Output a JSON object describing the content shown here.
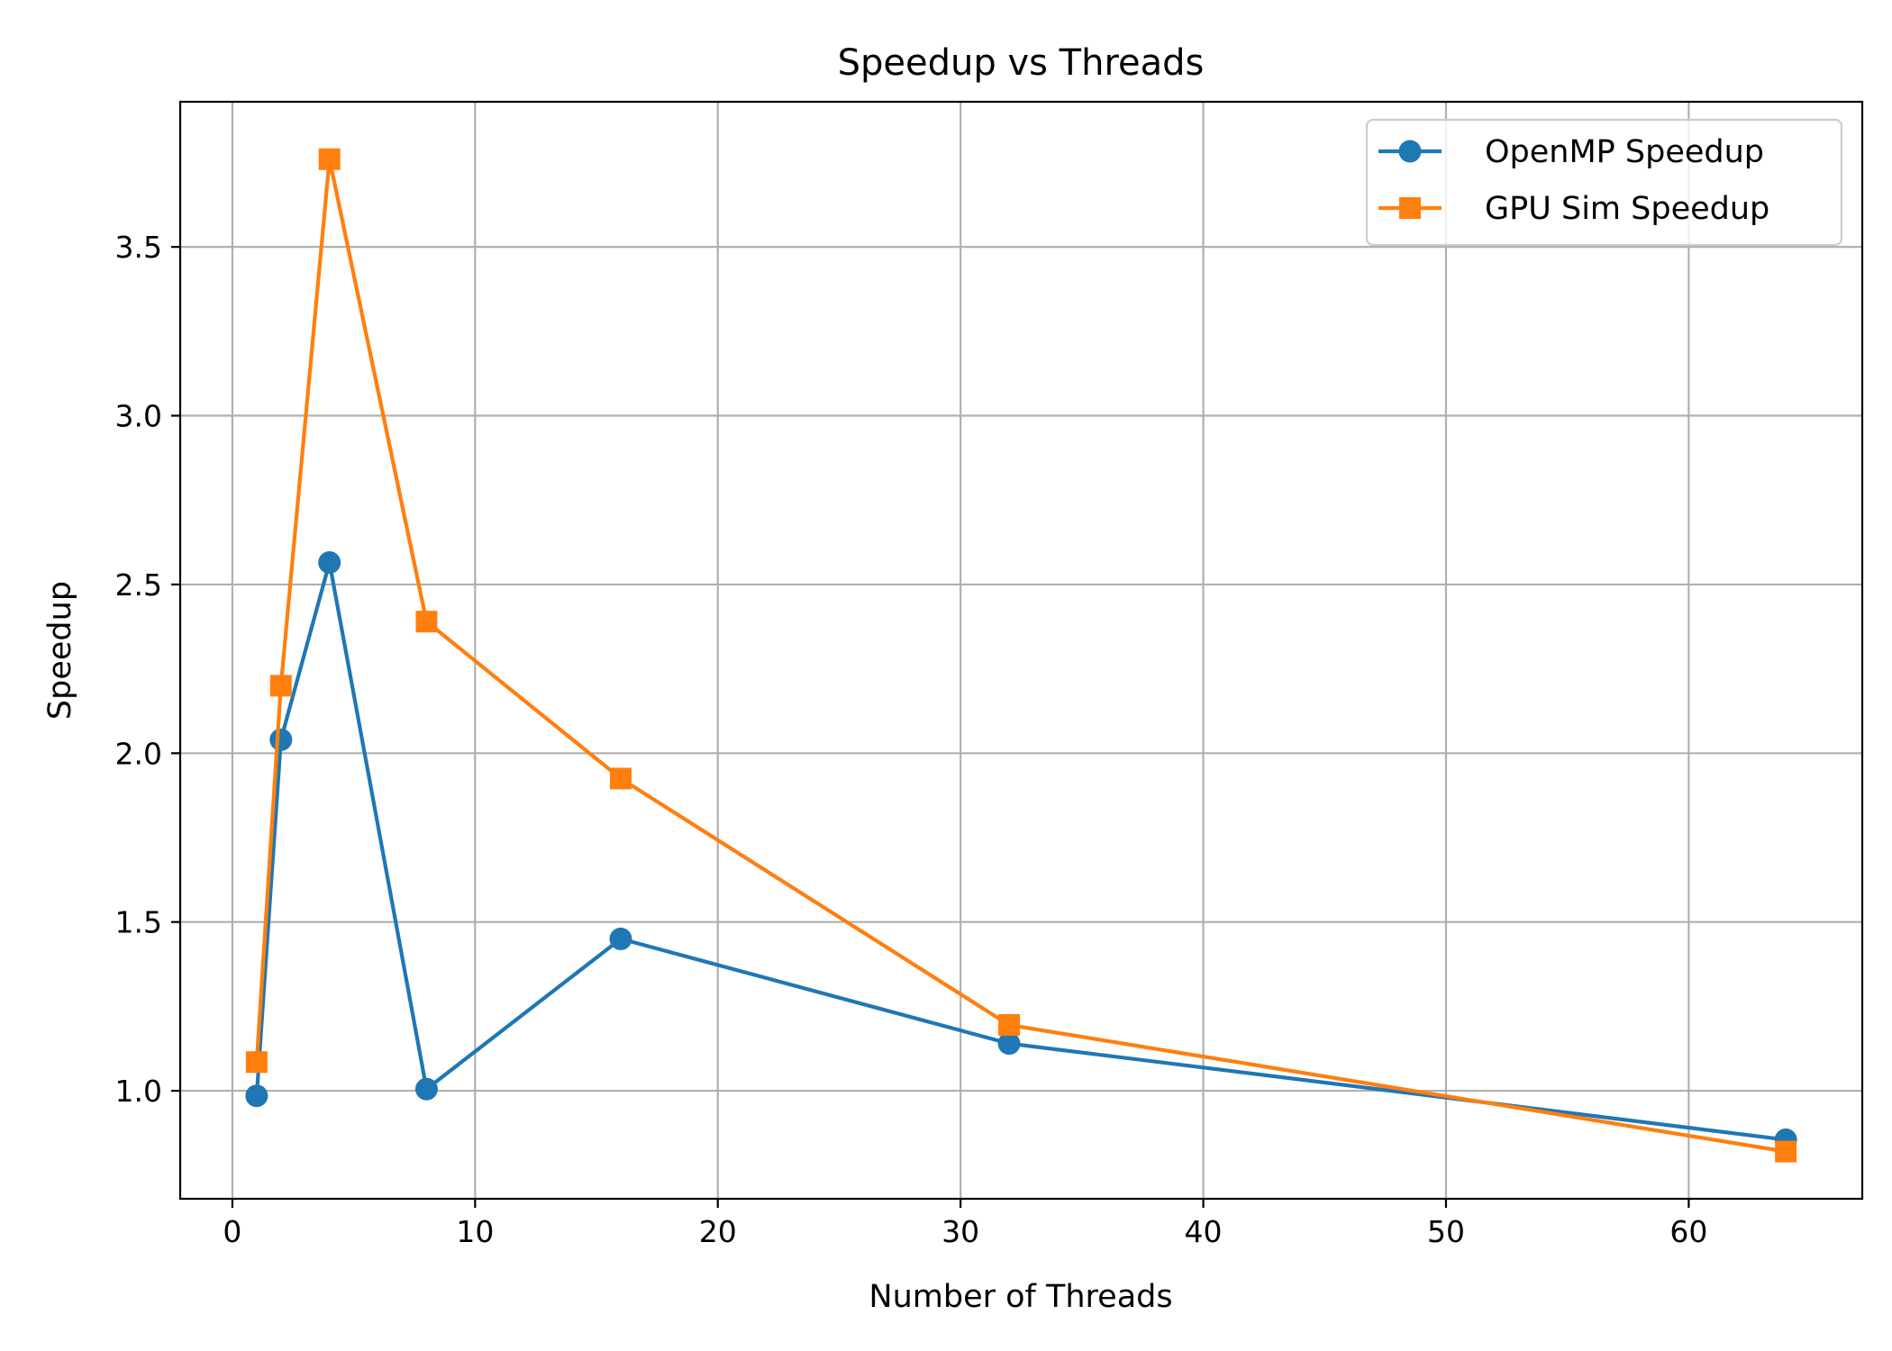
{
  "chart_data": {
    "type": "line",
    "title": "Speedup vs Threads",
    "xlabel": "Number of Threads",
    "ylabel": "Speedup",
    "xlim": [
      -2.15,
      67.15
    ],
    "ylim": [
      0.68,
      3.93
    ],
    "xticks": [
      0,
      10,
      20,
      30,
      40,
      50,
      60
    ],
    "yticks": [
      1.0,
      1.5,
      2.0,
      2.5,
      3.0,
      3.5
    ],
    "xtick_labels": [
      "0",
      "10",
      "20",
      "30",
      "40",
      "50",
      "60"
    ],
    "ytick_labels": [
      "1.0",
      "1.5",
      "2.0",
      "2.5",
      "3.0",
      "3.5"
    ],
    "grid": true,
    "legend_position": "upper right",
    "x": [
      1,
      2,
      4,
      8,
      16,
      32,
      64
    ],
    "series": [
      {
        "name": "OpenMP Speedup",
        "color": "#1f77b4",
        "marker": "circle",
        "values": [
          0.985,
          2.04,
          2.565,
          1.005,
          1.45,
          1.14,
          0.855
        ]
      },
      {
        "name": "GPU Sim Speedup",
        "color": "#ff7f0e",
        "marker": "square",
        "values": [
          1.085,
          2.2,
          3.76,
          2.39,
          1.925,
          1.195,
          0.82
        ]
      }
    ]
  }
}
